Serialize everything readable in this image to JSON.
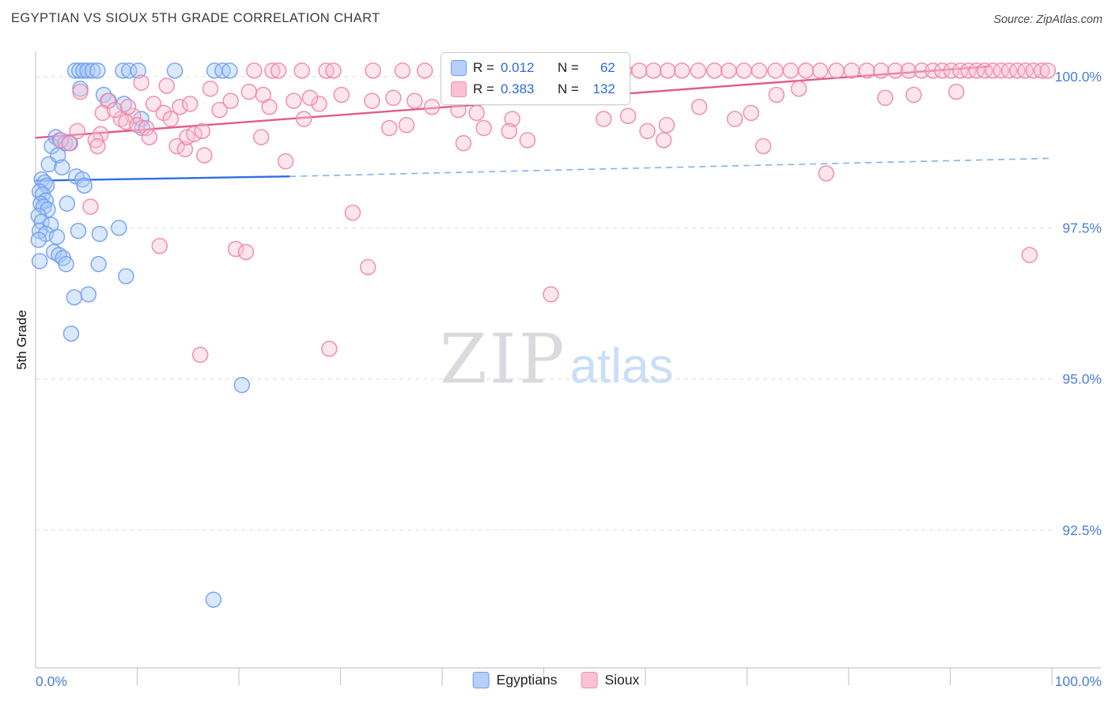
{
  "header": {
    "title": "EGYPTIAN VS SIOUX 5TH GRADE CORRELATION CHART",
    "source": "Source: ZipAtlas.com"
  },
  "watermark": {
    "zip": "ZIP",
    "atlas": "atlas"
  },
  "legend_box": {
    "r_label": "R =",
    "n_label": "N ="
  },
  "chart_data": {
    "type": "scatter",
    "title": "EGYPTIAN VS SIOUX 5TH GRADE CORRELATION CHART",
    "xlabel": "",
    "ylabel": "5th Grade",
    "x_range": [
      0,
      100
    ],
    "ylim": [
      90.2,
      100.4
    ],
    "grid": "horizontal-dashed",
    "legend_position": "bottom-center",
    "y_ticks": [
      100.0,
      97.5,
      95.0,
      92.5
    ],
    "y_tick_labels": [
      "100.0%",
      "97.5%",
      "95.0%",
      "92.5%"
    ],
    "x_tick_labels": [
      "0.0%",
      "100.0%"
    ],
    "series": [
      {
        "name": "Egyptians",
        "R": "0.012",
        "N": "62",
        "stroke": "#6f9df1",
        "fill": "#a6c7f7",
        "trend_color": "#2e6fe0",
        "points": [
          [
            3.9,
            100.1
          ],
          [
            4.3,
            100.1
          ],
          [
            4.7,
            100.1
          ],
          [
            5.1,
            100.1
          ],
          [
            5.6,
            100.1
          ],
          [
            6.1,
            100.1
          ],
          [
            8.6,
            100.1
          ],
          [
            9.2,
            100.1
          ],
          [
            10.1,
            100.1
          ],
          [
            13.7,
            100.1
          ],
          [
            17.6,
            100.1
          ],
          [
            18.4,
            100.1
          ],
          [
            19.1,
            100.1
          ],
          [
            4.4,
            99.8
          ],
          [
            6.7,
            99.7
          ],
          [
            7.2,
            99.6
          ],
          [
            8.7,
            99.55
          ],
          [
            10.4,
            99.3
          ],
          [
            10.5,
            99.15
          ],
          [
            2.0,
            99.0
          ],
          [
            2.4,
            98.95
          ],
          [
            2.9,
            98.9
          ],
          [
            3.4,
            98.9
          ],
          [
            1.6,
            98.85
          ],
          [
            2.2,
            98.7
          ],
          [
            1.3,
            98.55
          ],
          [
            2.6,
            98.5
          ],
          [
            0.6,
            98.3
          ],
          [
            0.9,
            98.25
          ],
          [
            1.1,
            98.2
          ],
          [
            4.0,
            98.35
          ],
          [
            4.6,
            98.3
          ],
          [
            0.4,
            98.1
          ],
          [
            0.7,
            98.05
          ],
          [
            1.0,
            97.95
          ],
          [
            0.5,
            97.9
          ],
          [
            0.8,
            97.85
          ],
          [
            1.2,
            97.8
          ],
          [
            3.1,
            97.9
          ],
          [
            4.8,
            98.2
          ],
          [
            0.3,
            97.7
          ],
          [
            0.6,
            97.6
          ],
          [
            1.5,
            97.55
          ],
          [
            0.4,
            97.45
          ],
          [
            1.0,
            97.4
          ],
          [
            2.1,
            97.35
          ],
          [
            4.2,
            97.45
          ],
          [
            6.3,
            97.4
          ],
          [
            8.2,
            97.5
          ],
          [
            0.3,
            97.3
          ],
          [
            1.8,
            97.1
          ],
          [
            2.3,
            97.05
          ],
          [
            2.7,
            97.0
          ],
          [
            0.4,
            96.95
          ],
          [
            3.0,
            96.9
          ],
          [
            6.2,
            96.9
          ],
          [
            8.9,
            96.7
          ],
          [
            3.8,
            96.35
          ],
          [
            5.2,
            96.4
          ],
          [
            3.5,
            95.75
          ],
          [
            20.3,
            94.9
          ],
          [
            17.5,
            91.35
          ]
        ],
        "trend_solid": [
          [
            0,
            98.28
          ],
          [
            25,
            98.35
          ]
        ],
        "trend_dashed": [
          [
            25,
            98.35
          ],
          [
            100,
            98.65
          ]
        ]
      },
      {
        "name": "Sioux",
        "R": "0.383",
        "N": "132",
        "stroke": "#ee85a5",
        "fill": "#f9c2d4",
        "trend_color": "#e25b88",
        "points": [
          [
            21.5,
            100.1
          ],
          [
            23.3,
            100.1
          ],
          [
            23.9,
            100.1
          ],
          [
            26.2,
            100.1
          ],
          [
            28.6,
            100.1
          ],
          [
            29.3,
            100.1
          ],
          [
            33.2,
            100.1
          ],
          [
            36.1,
            100.1
          ],
          [
            38.3,
            100.1
          ],
          [
            41.2,
            100.1
          ],
          [
            44.6,
            100.1
          ],
          [
            47.6,
            100.1
          ],
          [
            50.2,
            100.1
          ],
          [
            52.6,
            100.1
          ],
          [
            55.1,
            100.1
          ],
          [
            57.9,
            100.1
          ],
          [
            59.4,
            100.1
          ],
          [
            60.8,
            100.1
          ],
          [
            62.2,
            100.1
          ],
          [
            63.6,
            100.1
          ],
          [
            65.2,
            100.1
          ],
          [
            66.8,
            100.1
          ],
          [
            68.2,
            100.1
          ],
          [
            69.7,
            100.1
          ],
          [
            71.2,
            100.1
          ],
          [
            72.8,
            100.1
          ],
          [
            74.3,
            100.1
          ],
          [
            75.8,
            100.1
          ],
          [
            77.2,
            100.1
          ],
          [
            78.8,
            100.1
          ],
          [
            80.3,
            100.1
          ],
          [
            81.8,
            100.1
          ],
          [
            83.2,
            100.1
          ],
          [
            84.6,
            100.1
          ],
          [
            85.9,
            100.1
          ],
          [
            87.2,
            100.1
          ],
          [
            88.3,
            100.1
          ],
          [
            89.2,
            100.1
          ],
          [
            90.1,
            100.1
          ],
          [
            91.0,
            100.1
          ],
          [
            91.8,
            100.1
          ],
          [
            92.6,
            100.1
          ],
          [
            93.4,
            100.1
          ],
          [
            94.2,
            100.1
          ],
          [
            95.0,
            100.1
          ],
          [
            95.8,
            100.1
          ],
          [
            96.6,
            100.1
          ],
          [
            97.4,
            100.1
          ],
          [
            98.2,
            100.1
          ],
          [
            99.0,
            100.1
          ],
          [
            99.6,
            100.1
          ],
          [
            4.4,
            99.75
          ],
          [
            10.4,
            99.9
          ],
          [
            12.9,
            99.85
          ],
          [
            17.2,
            99.8
          ],
          [
            21.0,
            99.75
          ],
          [
            22.4,
            99.7
          ],
          [
            30.1,
            99.7
          ],
          [
            35.2,
            99.65
          ],
          [
            33.1,
            99.6
          ],
          [
            7.1,
            99.6
          ],
          [
            11.6,
            99.55
          ],
          [
            14.2,
            99.5
          ],
          [
            18.1,
            99.45
          ],
          [
            12.6,
            99.4
          ],
          [
            9.6,
            99.35
          ],
          [
            8.4,
            99.3
          ],
          [
            8.9,
            99.25
          ],
          [
            10.0,
            99.2
          ],
          [
            10.9,
            99.15
          ],
          [
            4.1,
            99.1
          ],
          [
            6.4,
            99.05
          ],
          [
            2.5,
            98.95
          ],
          [
            3.3,
            98.9
          ],
          [
            5.9,
            98.95
          ],
          [
            6.1,
            98.85
          ],
          [
            13.9,
            98.85
          ],
          [
            14.7,
            98.8
          ],
          [
            22.2,
            99.0
          ],
          [
            26.4,
            99.3
          ],
          [
            27.9,
            99.55
          ],
          [
            43.4,
            99.4
          ],
          [
            41.6,
            99.45
          ],
          [
            37.3,
            99.6
          ],
          [
            39.0,
            99.5
          ],
          [
            46.9,
            99.3
          ],
          [
            44.1,
            99.15
          ],
          [
            60.2,
            99.1
          ],
          [
            62.1,
            99.2
          ],
          [
            65.3,
            99.5
          ],
          [
            70.4,
            99.4
          ],
          [
            72.9,
            99.7
          ],
          [
            75.1,
            99.8
          ],
          [
            71.6,
            98.85
          ],
          [
            77.8,
            98.4
          ],
          [
            83.6,
            99.65
          ],
          [
            16.2,
            95.4
          ],
          [
            28.9,
            95.5
          ],
          [
            50.7,
            96.4
          ],
          [
            32.7,
            96.85
          ],
          [
            97.8,
            97.05
          ],
          [
            12.2,
            97.2
          ],
          [
            19.7,
            97.15
          ],
          [
            20.7,
            97.1
          ],
          [
            31.2,
            97.75
          ],
          [
            5.4,
            97.85
          ],
          [
            14.9,
            99.0
          ],
          [
            15.6,
            99.05
          ],
          [
            16.4,
            99.1
          ],
          [
            24.6,
            98.6
          ],
          [
            16.6,
            98.7
          ],
          [
            34.8,
            99.15
          ],
          [
            36.5,
            99.2
          ],
          [
            48.4,
            98.95
          ],
          [
            42.1,
            98.9
          ],
          [
            46.6,
            99.1
          ],
          [
            55.9,
            99.3
          ],
          [
            58.3,
            99.35
          ],
          [
            61.8,
            98.95
          ],
          [
            6.6,
            99.4
          ],
          [
            7.8,
            99.45
          ],
          [
            9.1,
            99.5
          ],
          [
            11.2,
            99.0
          ],
          [
            13.3,
            99.3
          ],
          [
            15.2,
            99.55
          ],
          [
            19.2,
            99.6
          ],
          [
            23.0,
            99.5
          ],
          [
            25.4,
            99.6
          ],
          [
            27.0,
            99.65
          ],
          [
            68.8,
            99.3
          ],
          [
            86.4,
            99.7
          ],
          [
            90.6,
            99.75
          ]
        ],
        "trend_solid": [
          [
            0,
            98.99
          ],
          [
            94,
            100.17
          ]
        ]
      }
    ]
  }
}
